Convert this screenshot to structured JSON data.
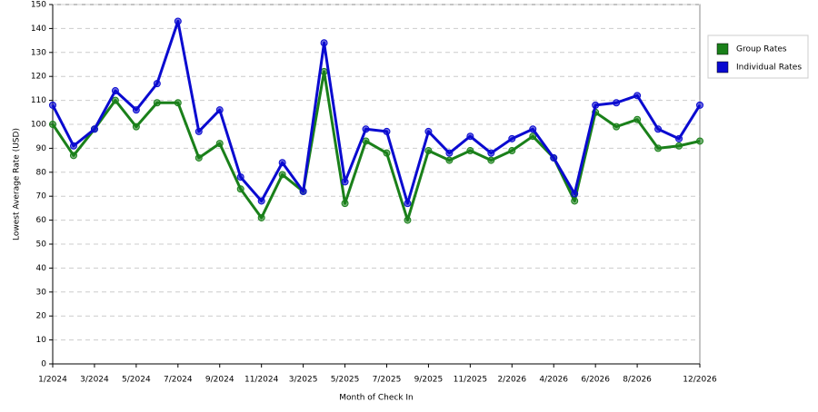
{
  "chart_data": {
    "type": "line",
    "x_label": "Month of Check In",
    "y_label": "Lowest Average Rate (USD)",
    "categories": [
      "1/2024",
      null,
      "3/2024",
      null,
      "5/2024",
      null,
      "7/2024",
      null,
      "9/2024",
      null,
      "11/2024",
      null,
      "3/2025",
      null,
      "5/2025",
      null,
      "7/2025",
      null,
      "9/2025",
      null,
      "11/2025",
      null,
      "2/2026",
      null,
      "4/2026",
      null,
      "6/2026",
      null,
      "8/2026",
      null,
      null,
      "12/2026"
    ],
    "series": [
      {
        "name": "Group Rates",
        "color": "#1a801a",
        "values": [
          100,
          87,
          98,
          110,
          99,
          109,
          109,
          86,
          92,
          73,
          61,
          79,
          72,
          122,
          67,
          93,
          88,
          60,
          89,
          85,
          89,
          85,
          89,
          95,
          86,
          68,
          105,
          99,
          102,
          90,
          91,
          93
        ]
      },
      {
        "name": "Individual Rates",
        "color": "#0a0ad0",
        "values": [
          108,
          91,
          98,
          114,
          106,
          117,
          143,
          97,
          106,
          78,
          68,
          84,
          72,
          134,
          76,
          98,
          97,
          67,
          97,
          88,
          95,
          88,
          94,
          98,
          86,
          71,
          108,
          109,
          112,
          98,
          94,
          108
        ]
      }
    ],
    "ylim": [
      0,
      150
    ],
    "yticks": [
      0,
      10,
      20,
      30,
      40,
      50,
      60,
      70,
      80,
      90,
      100,
      110,
      120,
      130,
      140,
      150
    ],
    "grid": true,
    "legend": "right"
  }
}
